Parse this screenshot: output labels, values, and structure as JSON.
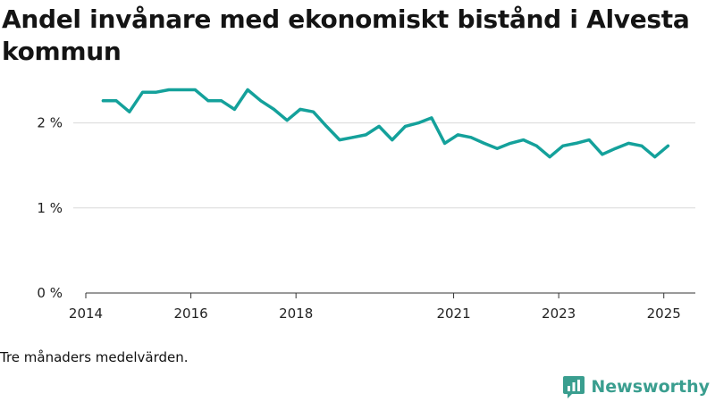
{
  "title": "Andel invånare med ekonomiskt bistånd i Alvesta kommun",
  "caption": "Tre månaders medelvärden.",
  "brand": {
    "name": "Newsworthy",
    "color": "#3a9e8f"
  },
  "chart_data": {
    "type": "line",
    "title": "Andel invånare med ekonomiskt bistånd i Alvesta kommun",
    "xlabel": "",
    "ylabel": "",
    "ylim": [
      0,
      2.5
    ],
    "xlim": [
      2014.0,
      2025.6
    ],
    "y_ticks": [
      {
        "value": 0,
        "label": "0 %"
      },
      {
        "value": 1,
        "label": "1 %"
      },
      {
        "value": 2,
        "label": "2 %"
      }
    ],
    "x_ticks": [
      {
        "value": 2014,
        "label": "2014"
      },
      {
        "value": 2016,
        "label": "2016"
      },
      {
        "value": 2018,
        "label": "2018"
      },
      {
        "value": 2021,
        "label": "2021"
      },
      {
        "value": 2023,
        "label": "2023"
      },
      {
        "value": 2025,
        "label": "2025"
      }
    ],
    "grid": true,
    "line_color": "#14a19b",
    "series": [
      {
        "x": [
          2014.33,
          2014.58,
          2014.83,
          2015.08,
          2015.33,
          2015.58,
          2015.83,
          2016.08,
          2016.33,
          2016.58,
          2016.83,
          2017.08,
          2017.33,
          2017.58,
          2017.83,
          2018.08,
          2018.33,
          2018.58,
          2018.83,
          2019.08,
          2019.33,
          2019.58,
          2019.83,
          2020.08,
          2020.33,
          2020.58,
          2020.83,
          2021.08,
          2021.33,
          2021.58,
          2021.83,
          2022.08,
          2022.33,
          2022.58,
          2022.83,
          2023.08,
          2023.33,
          2023.58,
          2023.83,
          2024.08,
          2024.33,
          2024.58,
          2024.83,
          2025.08
        ],
        "values": [
          2.26,
          2.26,
          2.13,
          2.36,
          2.36,
          2.39,
          2.39,
          2.39,
          2.26,
          2.26,
          2.16,
          2.39,
          2.26,
          2.16,
          2.03,
          2.16,
          2.13,
          1.96,
          1.8,
          1.83,
          1.86,
          1.96,
          1.8,
          1.96,
          2.0,
          2.06,
          1.76,
          1.86,
          1.83,
          1.76,
          1.7,
          1.76,
          1.8,
          1.73,
          1.6,
          1.73,
          1.76,
          1.8,
          1.63,
          1.7,
          1.76,
          1.73,
          1.6,
          1.73
        ]
      }
    ]
  }
}
